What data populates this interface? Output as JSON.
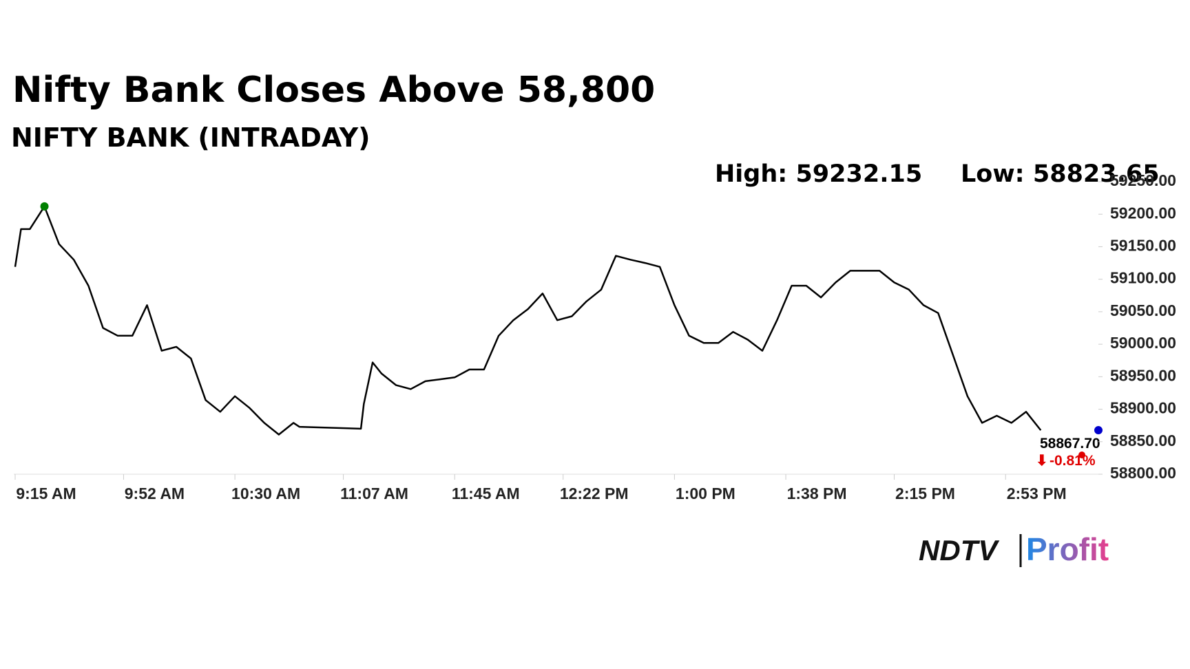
{
  "chart_data": {
    "type": "line",
    "title": "Nifty Bank Closes Above 58,800",
    "subtitle": "NIFTY BANK (INTRADAY)",
    "high_label": "High: 59232.15",
    "low_label": "Low: 58823.65",
    "last_label": "58867.70",
    "change_label": "-0.81%",
    "brand": [
      "NDTV",
      "Profit"
    ],
    "x": [
      "9:15 AM",
      "9:17 AM",
      "9:20 AM",
      "9:25 AM",
      "9:30 AM",
      "9:35 AM",
      "9:40 AM",
      "9:45 AM",
      "9:50 AM",
      "9:55 AM",
      "10:00 AM",
      "10:05 AM",
      "10:10 AM",
      "10:15 AM",
      "10:20 AM",
      "10:25 AM",
      "10:30 AM",
      "10:35 AM",
      "10:40 AM",
      "10:45 AM",
      "10:50 AM",
      "10:52 AM",
      "11:13 AM",
      "11:14 AM",
      "11:17 AM",
      "11:20 AM",
      "11:25 AM",
      "11:30 AM",
      "11:35 AM",
      "11:40 AM",
      "11:45 AM",
      "11:50 AM",
      "11:55 AM",
      "12:00 PM",
      "12:05 PM",
      "12:10 PM",
      "12:15 PM",
      "12:20 PM",
      "12:25 PM",
      "12:30 PM",
      "12:35 PM",
      "12:40 PM",
      "12:45 PM",
      "12:50 PM",
      "12:55 PM",
      "1:00 PM",
      "1:05 PM",
      "1:10 PM",
      "1:15 PM",
      "1:20 PM",
      "1:25 PM",
      "1:30 PM",
      "1:35 PM",
      "1:40 PM",
      "1:45 PM",
      "1:50 PM",
      "1:55 PM",
      "2:00 PM",
      "2:05 PM",
      "2:10 PM",
      "2:15 PM",
      "2:20 PM",
      "2:25 PM",
      "2:30 PM",
      "2:35 PM",
      "2:40 PM",
      "2:45 PM",
      "2:50 PM",
      "2:55 PM",
      "3:00 PM",
      "3:05 PM"
    ],
    "series": [
      {
        "name": "NIFTY BANK",
        "color": "#000000",
        "values": [
          59119,
          59177,
          59177,
          59212,
          59154,
          59130,
          59090,
          59025,
          59013,
          59013,
          59060,
          58990,
          58996,
          58978,
          58914,
          58896,
          58920,
          58902,
          58879,
          58861,
          58879,
          58873,
          58870,
          58908,
          58972,
          58955,
          58937,
          58931,
          58943,
          58946,
          58949,
          58961,
          58961,
          59013,
          59037,
          59054,
          59078,
          59037,
          59043,
          59066,
          59084,
          59136,
          59130,
          59125,
          59119,
          59060,
          59013,
          59002,
          59002,
          59019,
          59007,
          58990,
          59037,
          59090,
          59090,
          59072,
          59095,
          59113,
          59113,
          59113,
          59095,
          59084,
          59060,
          59048,
          58984,
          58920,
          58879,
          58890,
          58879,
          58896,
          58867.7
        ]
      }
    ],
    "xticks": [
      "9:15 AM",
      "9:52 AM",
      "10:30 AM",
      "11:07 AM",
      "11:45 AM",
      "12:22 PM",
      "1:00 PM",
      "1:38 PM",
      "2:15 PM",
      "2:53 PM"
    ],
    "ylim": [
      58800,
      59250
    ],
    "yticks": [
      {
        "value": 58800,
        "label": "58800.00"
      },
      {
        "value": 58850,
        "label": "58850.00"
      },
      {
        "value": 58900,
        "label": "58900.00"
      },
      {
        "value": 58950,
        "label": "58950.00"
      },
      {
        "value": 59000,
        "label": "59000.00"
      },
      {
        "value": 59050,
        "label": "59050.00"
      },
      {
        "value": 59100,
        "label": "59100.00"
      },
      {
        "value": 59150,
        "label": "59150.00"
      },
      {
        "value": 59200,
        "label": "59200.00"
      },
      {
        "value": 59250,
        "label": "59250.00"
      }
    ]
  }
}
